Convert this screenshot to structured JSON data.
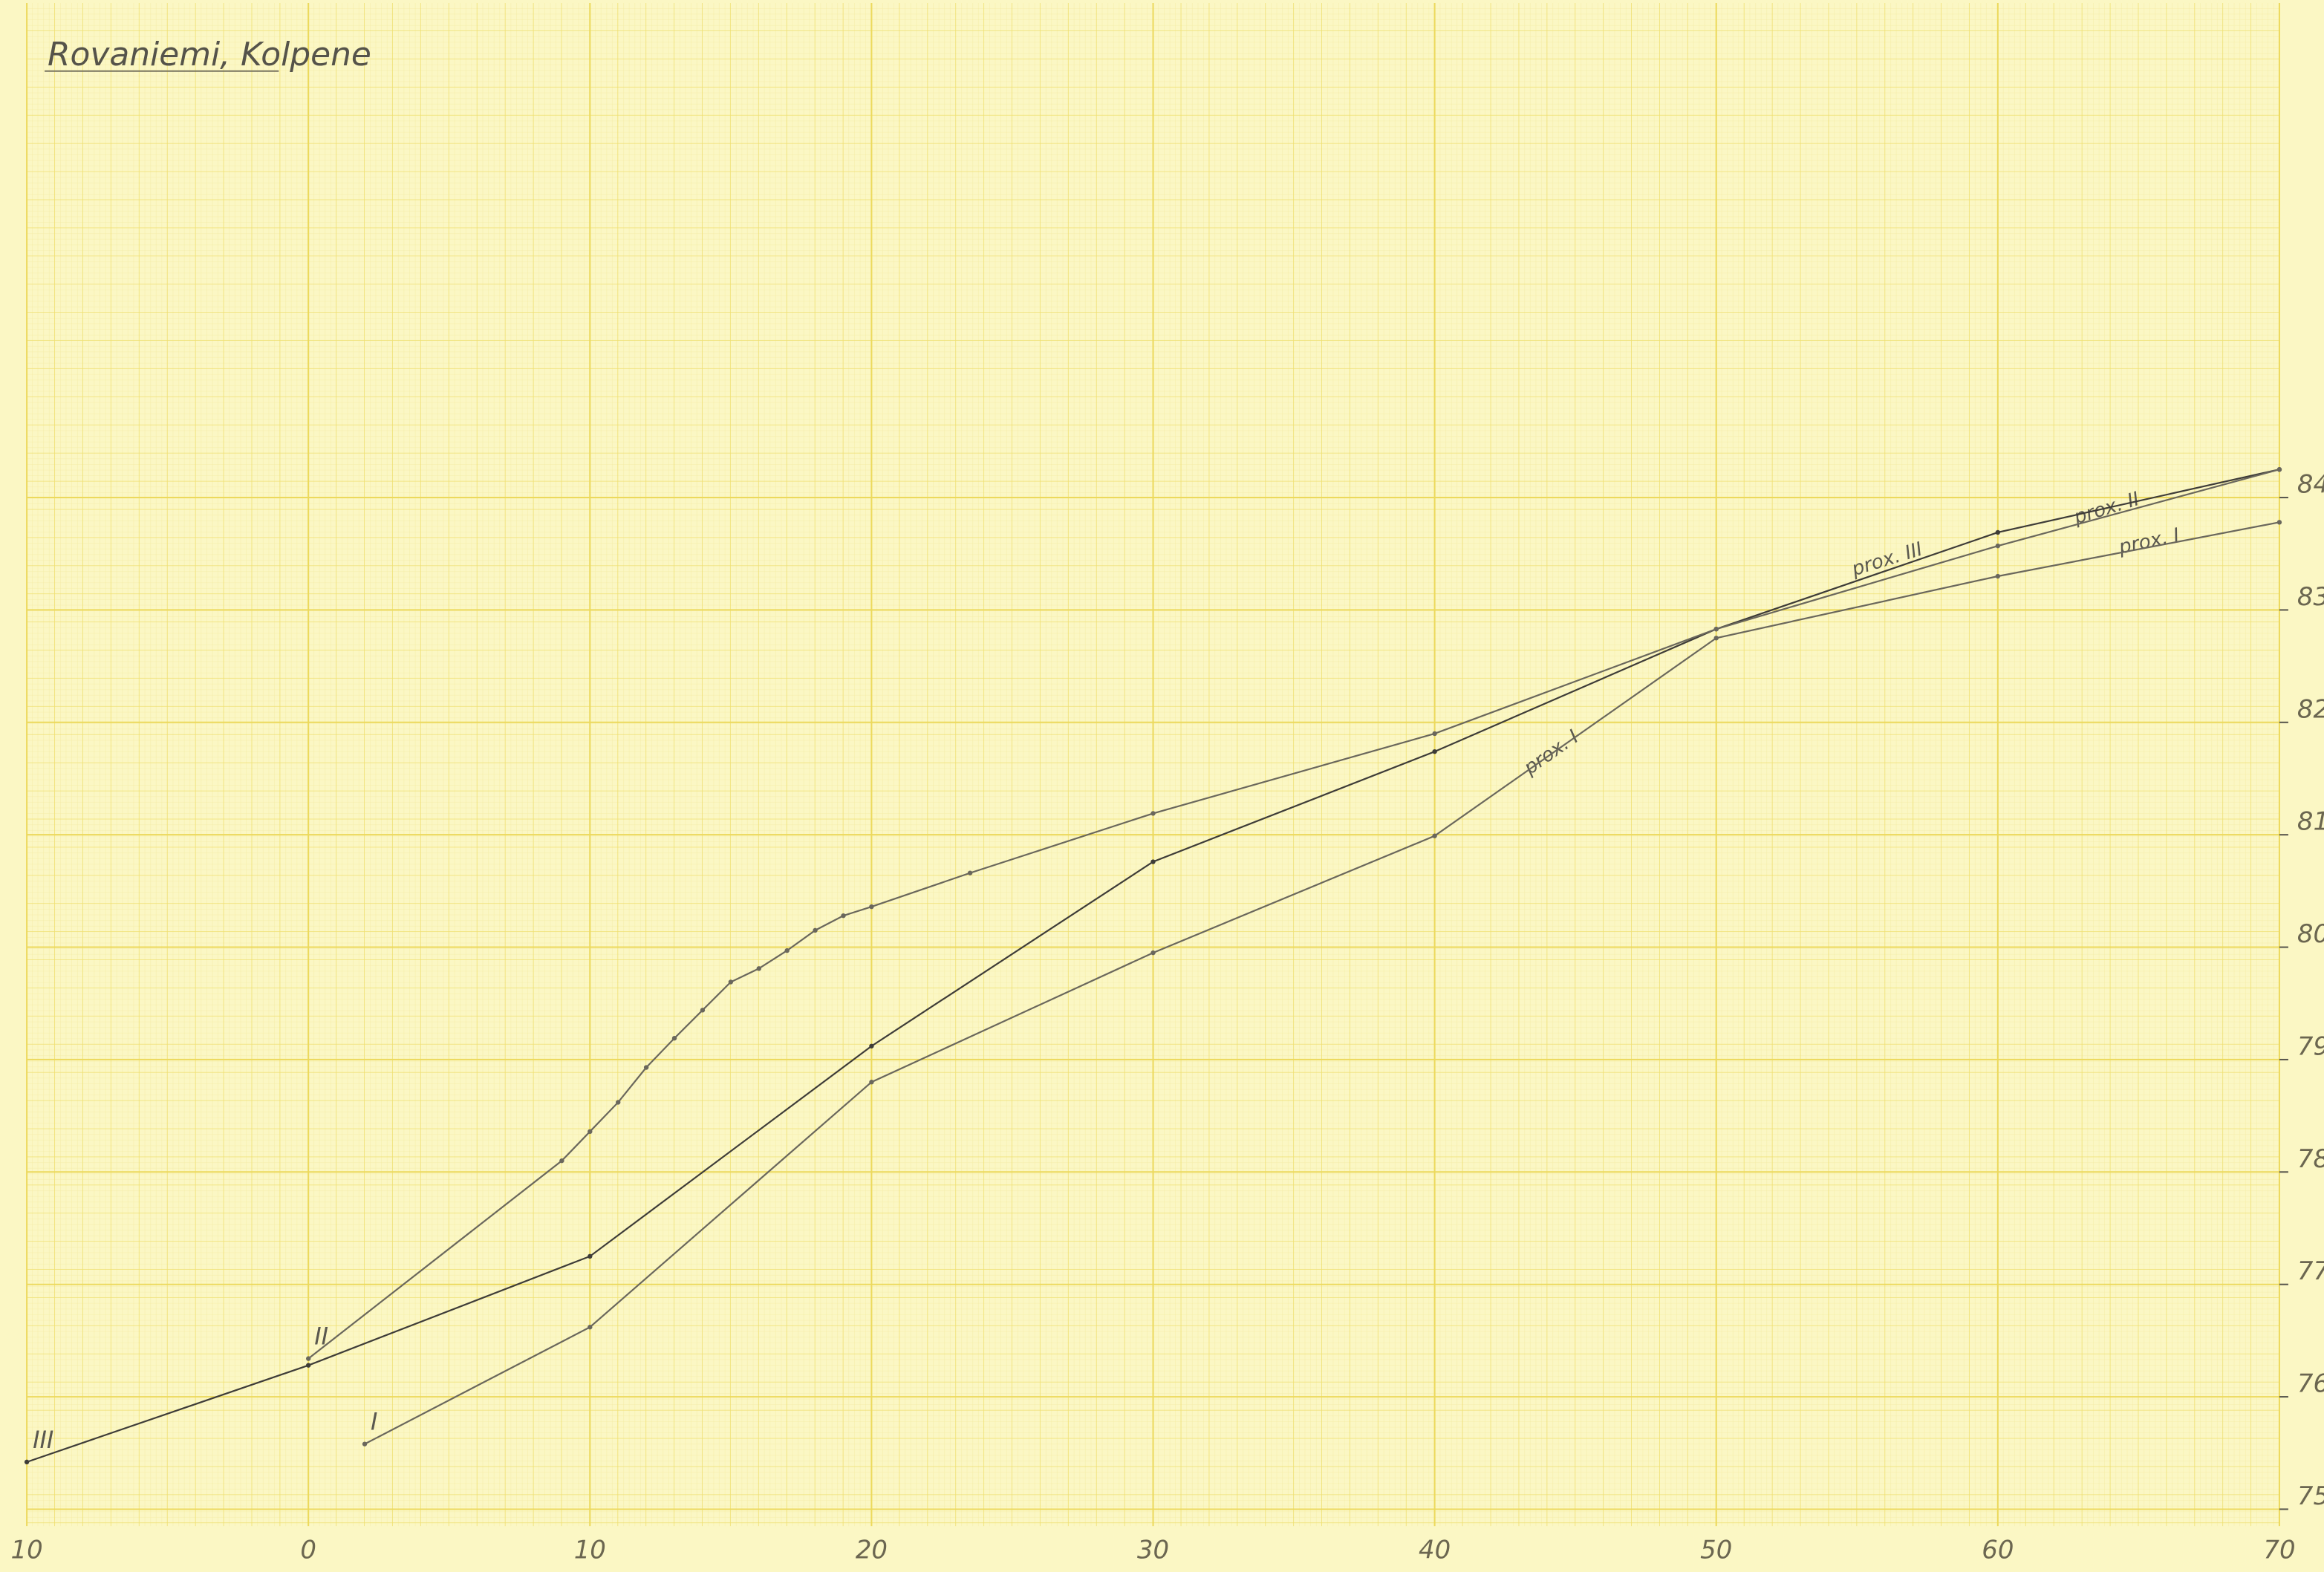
{
  "chart_data": {
    "type": "line",
    "title": "Rovaniemi, Kolpene",
    "xlim": [
      -10,
      70
    ],
    "ylim": [
      74.85,
      88.4
    ],
    "xticks": [
      {
        "value": -10,
        "label": "10"
      },
      0,
      10,
      20,
      30,
      40,
      50,
      60,
      70
    ],
    "yticks": [
      75,
      76,
      77,
      78,
      79,
      80,
      81,
      82,
      83,
      84
    ],
    "grid": true,
    "series": [
      {
        "name": "III",
        "color": "#3e3c38",
        "x": [
          -10,
          0,
          10,
          20,
          30,
          40,
          50,
          60,
          70
        ],
        "values": [
          75.42,
          76.28,
          77.25,
          79.12,
          80.76,
          81.74,
          82.83,
          83.69,
          84.25
        ]
      },
      {
        "name": "II",
        "color": "#6a675c",
        "x": [
          0,
          9,
          10,
          11,
          12,
          13,
          14,
          15,
          16,
          17,
          18,
          19,
          20,
          23.5,
          30,
          40,
          50,
          60,
          70
        ],
        "values": [
          76.34,
          78.1,
          78.36,
          78.62,
          78.93,
          79.19,
          79.44,
          79.69,
          79.81,
          79.97,
          80.15,
          80.28,
          80.36,
          80.66,
          81.19,
          81.9,
          82.83,
          83.57,
          84.25
        ]
      },
      {
        "name": "I",
        "color": "#6a675c",
        "x": [
          2,
          10,
          20,
          30,
          40,
          50,
          60,
          70
        ],
        "values": [
          75.58,
          76.62,
          78.8,
          79.95,
          80.99,
          82.75,
          83.3,
          83.78
        ]
      }
    ],
    "annotations": [
      "prox. III",
      "prox. II",
      "prox. I",
      "prox. I"
    ]
  }
}
